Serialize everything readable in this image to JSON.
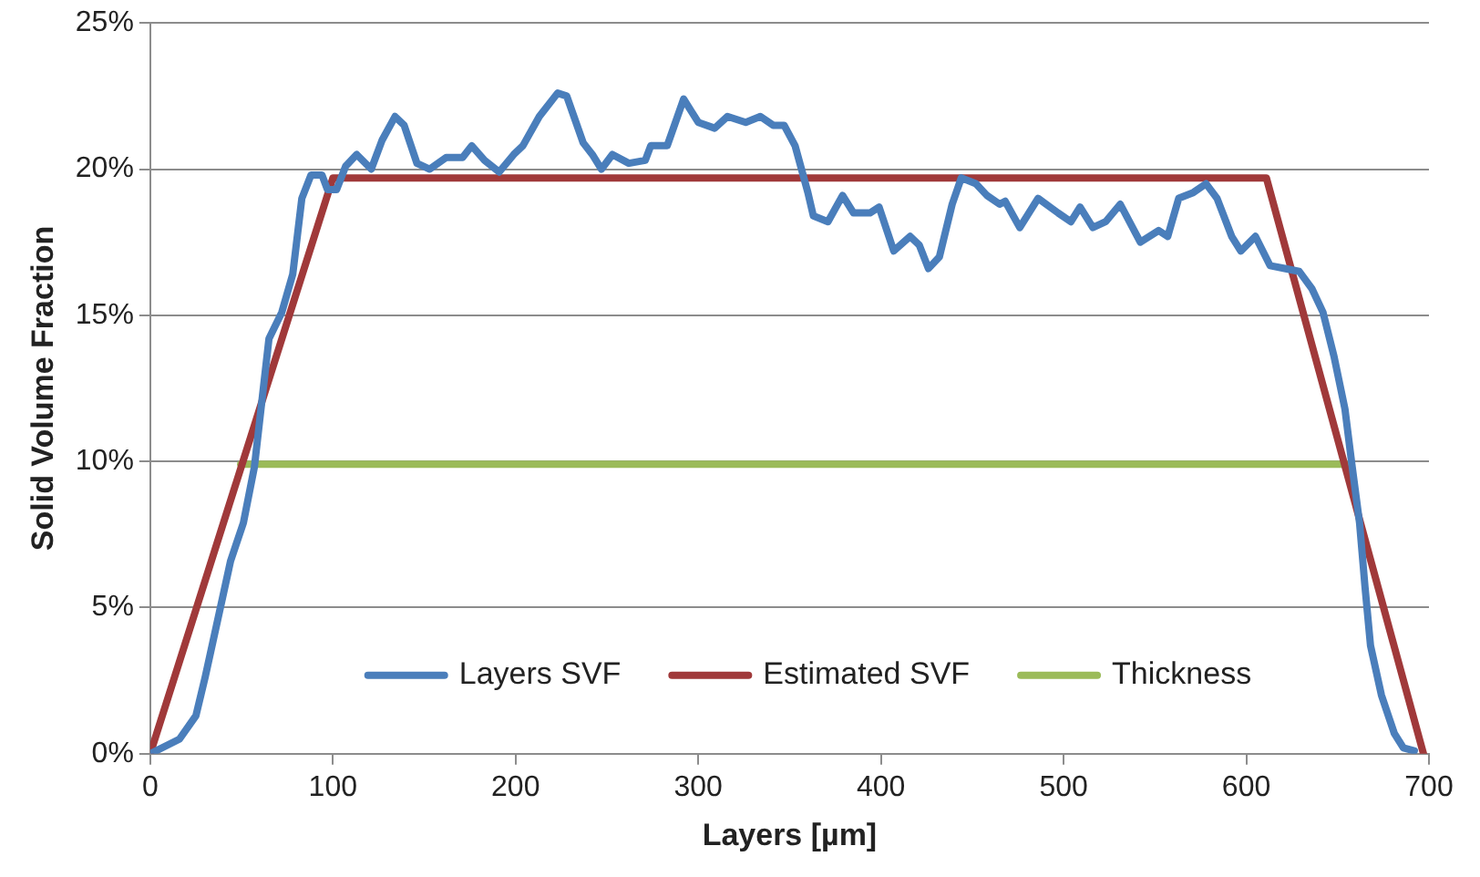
{
  "chart_data": {
    "type": "line",
    "xlabel": "Layers [µm]",
    "ylabel": "Solid Volume Fraction",
    "xlim": [
      0,
      700
    ],
    "xticks": [
      0,
      100,
      200,
      300,
      400,
      500,
      600,
      700
    ],
    "ylim": [
      0,
      25
    ],
    "yticks": [
      {
        "value": 0,
        "label": "0%"
      },
      {
        "value": 5,
        "label": "5%"
      },
      {
        "value": 10,
        "label": "10%"
      },
      {
        "value": 15,
        "label": "15%"
      },
      {
        "value": 20,
        "label": "20%"
      },
      {
        "value": 25,
        "label": "25%"
      }
    ],
    "grid": "y",
    "legend": "bottom",
    "marker": "none",
    "line_style": "solid",
    "series": [
      {
        "name": "Layers SVF",
        "color": "#4a7ebb",
        "x": [
          0,
          16,
          25,
          30,
          37,
          44,
          51,
          57,
          65,
          72,
          78,
          83,
          88,
          94,
          97,
          102,
          107,
          113,
          121,
          127,
          134,
          139,
          146,
          153,
          162,
          171,
          176,
          183,
          191,
          199,
          204,
          213,
          223,
          228,
          237,
          242,
          247,
          253,
          262,
          271,
          274,
          283,
          292,
          300,
          309,
          316,
          326,
          334,
          341,
          347,
          353,
          360,
          363,
          371,
          379,
          385,
          394,
          399,
          407,
          416,
          421,
          426,
          432,
          439,
          444,
          452,
          458,
          465,
          468,
          476,
          486,
          497,
          504,
          509,
          516,
          523,
          531,
          542,
          552,
          557,
          563,
          571,
          578,
          584,
          592,
          597,
          605,
          613,
          621,
          629,
          636,
          642,
          648,
          654,
          658,
          662,
          665,
          668,
          674,
          681,
          686,
          692
        ],
        "values": [
          0,
          0.5,
          1.3,
          2.6,
          4.6,
          6.6,
          7.9,
          9.8,
          14.2,
          15.1,
          16.4,
          19.0,
          19.8,
          19.8,
          19.3,
          19.3,
          20.1,
          20.5,
          20.0,
          21.0,
          21.8,
          21.5,
          20.2,
          20.0,
          20.4,
          20.4,
          20.8,
          20.3,
          19.9,
          20.5,
          20.8,
          21.8,
          22.6,
          22.5,
          20.9,
          20.5,
          20.0,
          20.5,
          20.2,
          20.3,
          20.8,
          20.8,
          22.4,
          21.6,
          21.4,
          21.8,
          21.6,
          21.8,
          21.5,
          21.5,
          20.8,
          19.2,
          18.4,
          18.2,
          19.1,
          18.5,
          18.5,
          18.7,
          17.2,
          17.7,
          17.4,
          16.6,
          17.0,
          18.8,
          19.7,
          19.5,
          19.1,
          18.8,
          18.9,
          18.0,
          19.0,
          18.5,
          18.2,
          18.7,
          18.0,
          18.2,
          18.8,
          17.5,
          17.9,
          17.7,
          19.0,
          19.2,
          19.5,
          19.0,
          17.7,
          17.2,
          17.7,
          16.7,
          16.6,
          16.5,
          15.9,
          15.1,
          13.6,
          11.8,
          9.8,
          7.9,
          5.7,
          3.7,
          2.0,
          0.7,
          0.2,
          0.1
        ]
      },
      {
        "name": "Estimated SVF",
        "color": "#a0393a",
        "x": [
          0,
          100,
          611,
          697
        ],
        "values": [
          0,
          19.7,
          19.7,
          0
        ]
      },
      {
        "name": "Thickness",
        "color": "#9bbb59",
        "x": [
          49.5,
          655
        ],
        "values": [
          9.9,
          9.9
        ]
      }
    ]
  }
}
